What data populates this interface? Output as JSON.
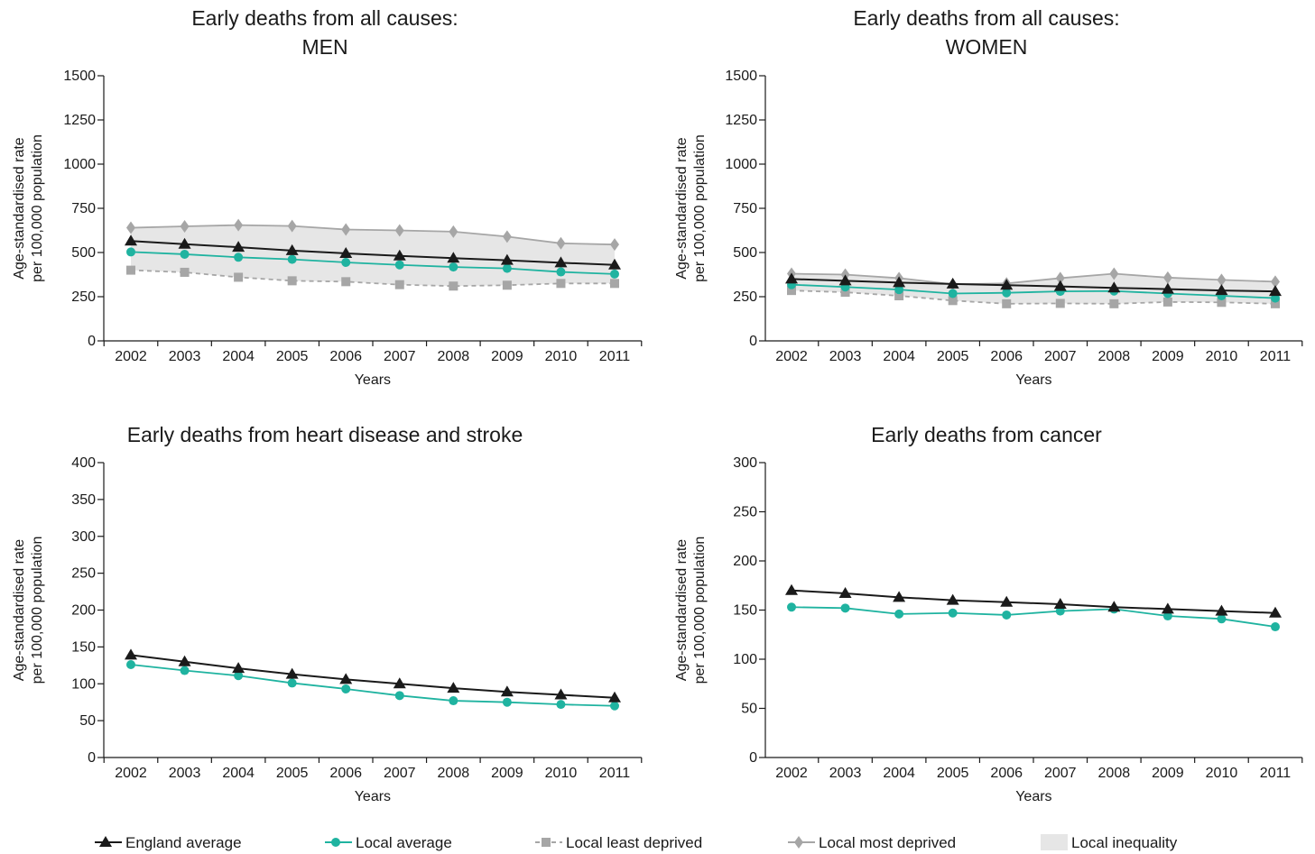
{
  "chart_data": [
    {
      "type": "line",
      "title": [
        "Early deaths from all causes:",
        "MEN"
      ],
      "xlabel": "Years",
      "ylabel": [
        "Age-standardised rate",
        "per 100,000 population"
      ],
      "categories": [
        "2002",
        "2003",
        "2004",
        "2005",
        "2006",
        "2007",
        "2008",
        "2009",
        "2010",
        "2011"
      ],
      "ylim": [
        0,
        1500
      ],
      "yticks": [
        0,
        250,
        500,
        750,
        1000,
        1250,
        1500
      ],
      "inequality_band": true,
      "series": [
        {
          "name": "England average",
          "key": "england",
          "values": [
            565,
            547,
            530,
            511,
            495,
            481,
            468,
            456,
            442,
            430
          ]
        },
        {
          "name": "Local average",
          "key": "local",
          "values": [
            503,
            490,
            473,
            461,
            444,
            430,
            418,
            410,
            390,
            378
          ]
        },
        {
          "name": "Local least deprived",
          "key": "least",
          "values": [
            400,
            388,
            360,
            340,
            335,
            318,
            310,
            315,
            325,
            325
          ]
        },
        {
          "name": "Local most deprived",
          "key": "most",
          "values": [
            640,
            648,
            655,
            650,
            630,
            625,
            618,
            590,
            552,
            545
          ]
        }
      ]
    },
    {
      "type": "line",
      "title": [
        "Early deaths from all causes:",
        "WOMEN"
      ],
      "xlabel": "Years",
      "ylabel": [
        "Age-standardised rate",
        "per 100,000 population"
      ],
      "categories": [
        "2002",
        "2003",
        "2004",
        "2005",
        "2006",
        "2007",
        "2008",
        "2009",
        "2010",
        "2011"
      ],
      "ylim": [
        0,
        1500
      ],
      "yticks": [
        0,
        250,
        500,
        750,
        1000,
        1250,
        1500
      ],
      "inequality_band": true,
      "series": [
        {
          "name": "England average",
          "key": "england",
          "values": [
            350,
            340,
            330,
            322,
            315,
            308,
            300,
            293,
            285,
            280
          ]
        },
        {
          "name": "Local average",
          "key": "local",
          "values": [
            318,
            305,
            290,
            268,
            272,
            280,
            282,
            268,
            255,
            242
          ]
        },
        {
          "name": "Local least deprived",
          "key": "least",
          "values": [
            285,
            275,
            255,
            228,
            210,
            212,
            210,
            220,
            218,
            210
          ]
        },
        {
          "name": "Local most deprived",
          "key": "most",
          "values": [
            380,
            375,
            355,
            320,
            325,
            355,
            380,
            358,
            345,
            335
          ]
        }
      ]
    },
    {
      "type": "line",
      "title": [
        "Early deaths from heart disease and stroke"
      ],
      "xlabel": "Years",
      "ylabel": [
        "Age-standardised rate",
        "per 100,000 population"
      ],
      "categories": [
        "2002",
        "2003",
        "2004",
        "2005",
        "2006",
        "2007",
        "2008",
        "2009",
        "2010",
        "2011"
      ],
      "ylim": [
        0,
        400
      ],
      "yticks": [
        0,
        50,
        100,
        150,
        200,
        250,
        300,
        350,
        400
      ],
      "inequality_band": false,
      "series": [
        {
          "name": "England average",
          "key": "england",
          "values": [
            139,
            130,
            121,
            113,
            106,
            100,
            94,
            89,
            85,
            81
          ]
        },
        {
          "name": "Local average",
          "key": "local",
          "values": [
            126,
            118,
            111,
            101,
            93,
            84,
            77,
            75,
            72,
            70
          ]
        }
      ]
    },
    {
      "type": "line",
      "title": [
        "Early deaths from cancer"
      ],
      "xlabel": "Years",
      "ylabel": [
        "Age-standardised rate",
        "per 100,000 population"
      ],
      "categories": [
        "2002",
        "2003",
        "2004",
        "2005",
        "2006",
        "2007",
        "2008",
        "2009",
        "2010",
        "2011"
      ],
      "ylim": [
        0,
        300
      ],
      "yticks": [
        0,
        50,
        100,
        150,
        200,
        250,
        300
      ],
      "inequality_band": false,
      "series": [
        {
          "name": "England average",
          "key": "england",
          "values": [
            170,
            167,
            163,
            160,
            158,
            156,
            153,
            151,
            149,
            147
          ]
        },
        {
          "name": "Local average",
          "key": "local",
          "values": [
            153,
            152,
            146,
            147,
            145,
            149,
            151,
            144,
            141,
            133
          ]
        }
      ]
    }
  ],
  "legend": [
    {
      "key": "england",
      "label": "England average"
    },
    {
      "key": "local",
      "label": "Local average"
    },
    {
      "key": "least",
      "label": "Local least deprived"
    },
    {
      "key": "most",
      "label": "Local most deprived"
    },
    {
      "key": "band",
      "label": "Local inequality"
    }
  ],
  "colors": {
    "england": "#1a1a1a",
    "local": "#1fb3a0",
    "least": "#a6a6a6",
    "most": "#a6a6a6",
    "band": "#e6e6e6",
    "axis": "#1a1a1a"
  }
}
